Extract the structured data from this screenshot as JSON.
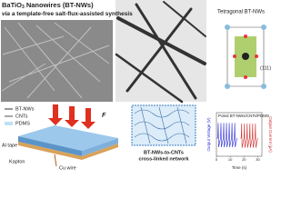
{
  "header": {
    "title": "BaTiO",
    "title_sub": "3",
    "title_rest": " Nanowires (BT-NWs)",
    "subtitle_via": "via",
    "subtitle": " a template-free salt-flux-assisted synthesis"
  },
  "crystal": {
    "title": "Tetragonal BT-NWs",
    "plane": "(111)"
  },
  "device": {
    "legend": [
      "BT-NWs",
      "CNTs",
      "PDMS"
    ],
    "force": "F",
    "labels": [
      "Al tape",
      "Kapton",
      "Cu wire"
    ]
  },
  "network": {
    "caption_1": "BT-NWs-to-CNTs",
    "caption_2": "cross-linked network"
  },
  "chart_data": {
    "type": "line",
    "title": "Poled BT-NWs/CNTs/PDMS",
    "x_label": "Time (s)",
    "y_label": "Output Voltage (V)",
    "y2_label": "Output Current (μA)",
    "xlim": [
      0,
      33
    ],
    "xticks": [
      0,
      10,
      20,
      30
    ],
    "ylim": [
      -6,
      6
    ],
    "y2lim": [
      -1.5,
      1.5
    ],
    "series": [
      {
        "name": "Output Voltage",
        "color": "#2b2bd0",
        "x": [
          0,
          1,
          1.3,
          1.6,
          3,
          3.3,
          3.6,
          5,
          5.3,
          5.6,
          7,
          7.3,
          7.6,
          9,
          9.3,
          9.6,
          11,
          11.3,
          11.6,
          13,
          13.3,
          13.6,
          15
        ],
        "values": [
          0,
          0,
          5,
          -3,
          0,
          5,
          -3,
          0,
          5,
          -3,
          0,
          5,
          -3,
          0,
          5,
          -3,
          0,
          5,
          -3,
          0,
          5,
          -3,
          0
        ]
      },
      {
        "name": "Output Current",
        "color": "#d02b2b",
        "axis": "y2",
        "x": [
          17,
          18,
          18.3,
          18.6,
          20,
          20.3,
          20.6,
          22,
          22.3,
          22.6,
          24,
          24.3,
          24.6,
          26,
          26.3,
          26.6,
          28,
          28.3,
          28.6,
          30
        ],
        "values": [
          0,
          0,
          1.2,
          -0.8,
          0,
          1.2,
          -0.8,
          0,
          1.2,
          -0.8,
          0,
          1.2,
          -0.8,
          0,
          1.2,
          -0.8,
          0,
          1.2,
          -0.8,
          0
        ]
      }
    ]
  }
}
